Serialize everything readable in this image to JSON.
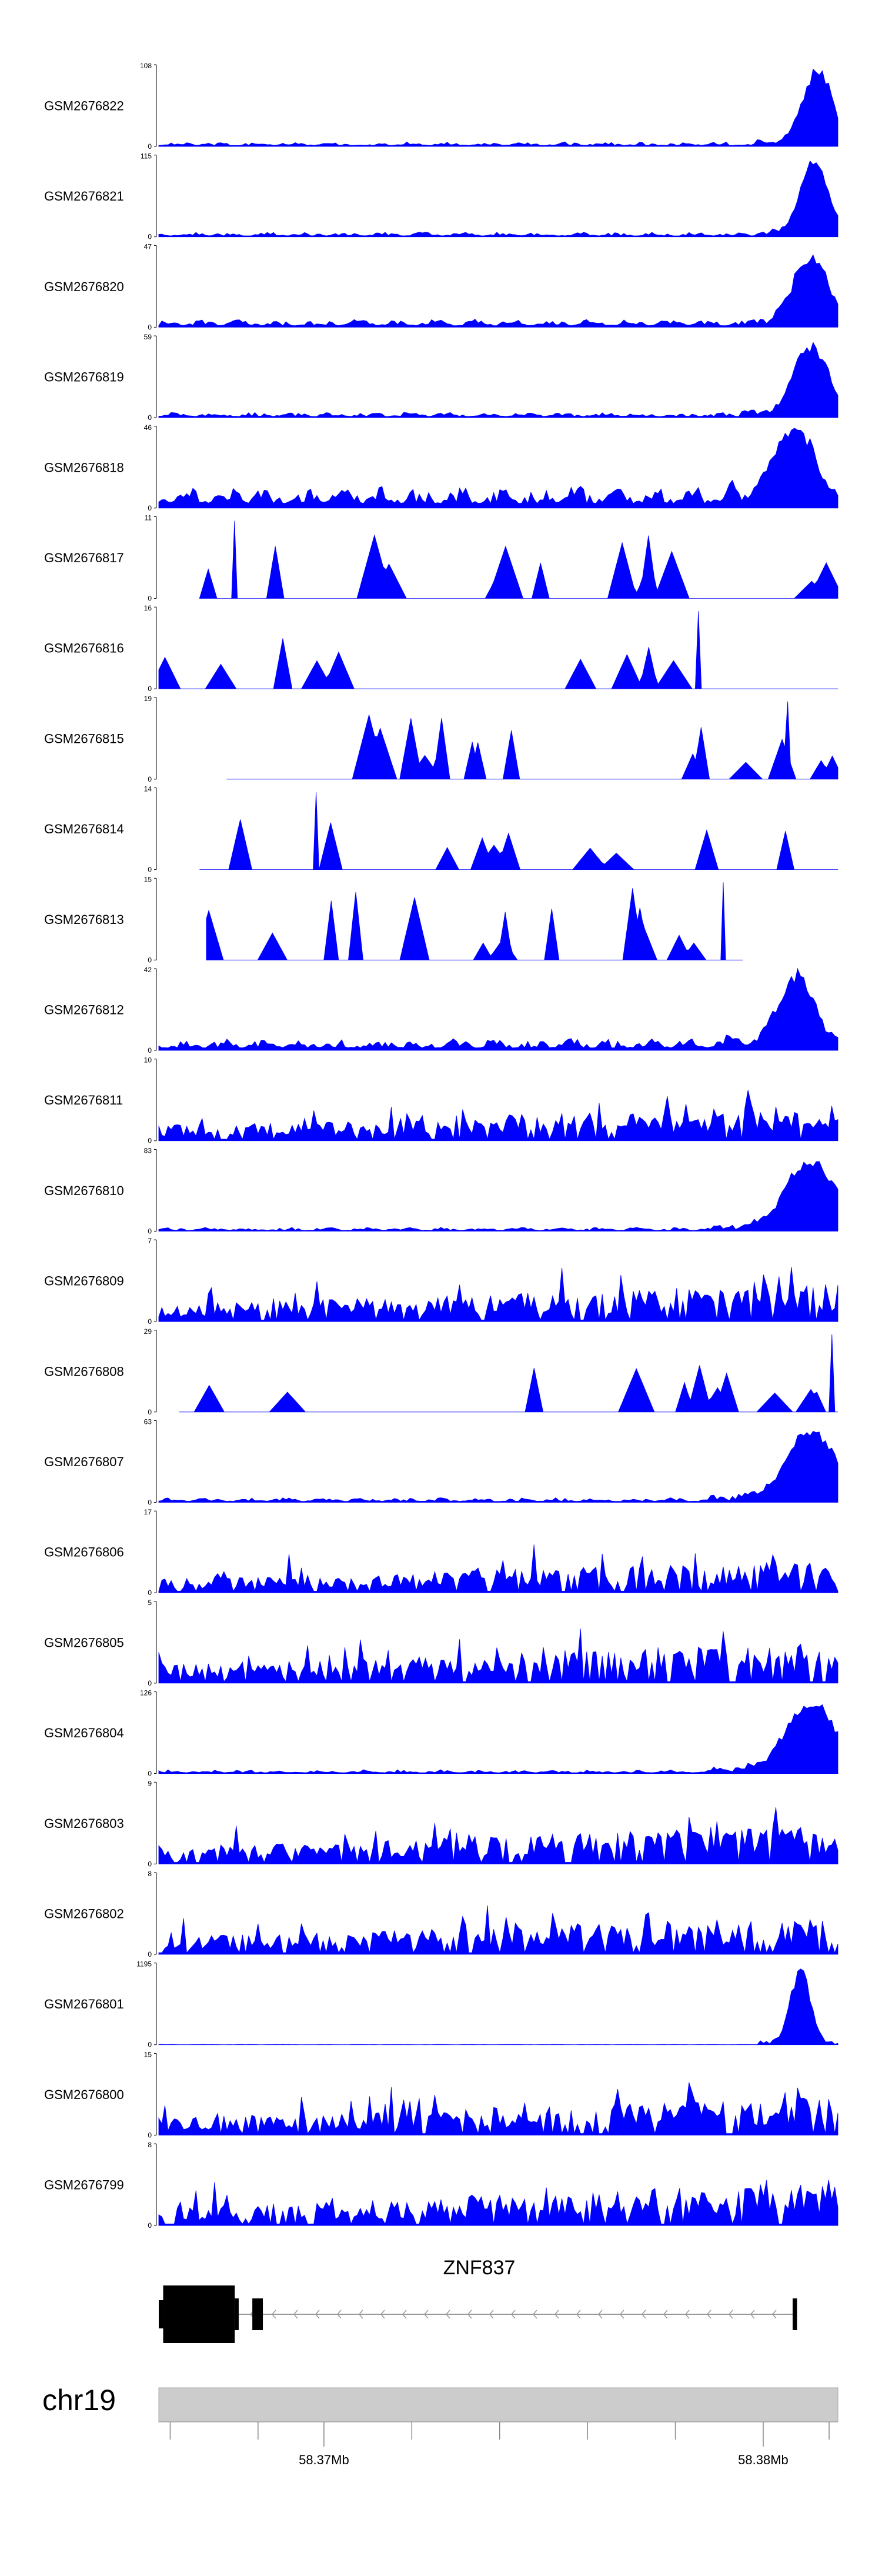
{
  "chart_data": {
    "type": "area",
    "color": "#0000ff",
    "genome": {
      "chromosome": "chr19",
      "x_range": [
        58.36624,
        58.3817
      ],
      "axis_ticks": [
        {
          "pos": 58.3665,
          "label": ""
        },
        {
          "pos": 58.3685,
          "label": ""
        },
        {
          "pos": 58.37,
          "label": "58.37Mb"
        },
        {
          "pos": 58.372,
          "label": ""
        },
        {
          "pos": 58.374,
          "label": ""
        },
        {
          "pos": 58.376,
          "label": ""
        },
        {
          "pos": 58.378,
          "label": ""
        },
        {
          "pos": 58.38,
          "label": "58.38Mb"
        },
        {
          "pos": 58.3815,
          "label": ""
        }
      ]
    },
    "gene": {
      "name": "ZNF837",
      "strand": "-",
      "exons": [
        {
          "start": 58.36624,
          "end": 58.36634
        },
        {
          "start": 58.36634,
          "end": 58.36797
        },
        {
          "start": 58.36797,
          "end": 58.36806
        },
        {
          "start": 58.36837,
          "end": 58.36861
        },
        {
          "start": 58.38067,
          "end": 58.38077
        }
      ],
      "intron": [
        58.36806,
        58.38077
      ]
    },
    "tracks": [
      {
        "name": "GSM2676822",
        "ymax": "108",
        "ymin": "0",
        "profile": "peak_end",
        "peak_pos": 0.97,
        "peak_width": 0.03,
        "peak_height": 0.92,
        "base": 0.06,
        "seed": 22,
        "start": 0.0,
        "end": 1.0
      },
      {
        "name": "GSM2676821",
        "ymax": "115",
        "ymin": "0",
        "profile": "peak_end",
        "peak_pos": 0.965,
        "peak_width": 0.028,
        "peak_height": 0.93,
        "base": 0.06,
        "seed": 21,
        "start": 0.0,
        "end": 1.0
      },
      {
        "name": "GSM2676820",
        "ymax": "47",
        "ymin": "0",
        "profile": "peak_end",
        "peak_pos": 0.96,
        "peak_width": 0.035,
        "peak_height": 0.85,
        "base": 0.1,
        "seed": 20,
        "start": 0.0,
        "end": 1.0
      },
      {
        "name": "GSM2676819",
        "ymax": "59",
        "ymin": "0",
        "profile": "peak_end",
        "peak_pos": 0.96,
        "peak_width": 0.035,
        "peak_height": 0.88,
        "base": 0.07,
        "seed": 19,
        "start": 0.0,
        "end": 1.0
      },
      {
        "name": "GSM2676818",
        "ymax": "46",
        "ymin": "0",
        "profile": "peak_end",
        "peak_pos": 0.935,
        "peak_width": 0.04,
        "peak_height": 0.88,
        "base": 0.28,
        "seed": 18,
        "start": 0.0,
        "end": 1.0
      },
      {
        "name": "GSM2676817",
        "ymax": "11",
        "ymin": "0",
        "profile": "sparse",
        "base": 0.7,
        "seed": 17,
        "start": 0.06,
        "end": 1.0
      },
      {
        "name": "GSM2676816",
        "ymax": "16",
        "ymin": "0",
        "profile": "sparse",
        "base": 0.55,
        "seed": 16,
        "start": 0.0,
        "end": 1.0
      },
      {
        "name": "GSM2676815",
        "ymax": "19",
        "ymin": "0",
        "profile": "sparse",
        "base": 0.75,
        "seed": 15,
        "start": 0.1,
        "end": 1.0
      },
      {
        "name": "GSM2676814",
        "ymax": "14",
        "ymin": "0",
        "profile": "sparse",
        "base": 0.6,
        "seed": 14,
        "start": 0.06,
        "end": 1.0
      },
      {
        "name": "GSM2676813",
        "ymax": "15",
        "ymin": "0",
        "profile": "sparse",
        "base": 0.7,
        "seed": 13,
        "start": 0.07,
        "end": 0.86
      },
      {
        "name": "GSM2676812",
        "ymax": "42",
        "ymin": "0",
        "profile": "peak_end",
        "peak_pos": 0.94,
        "peak_width": 0.035,
        "peak_height": 0.9,
        "base": 0.15,
        "seed": 12,
        "start": 0.0,
        "end": 1.0
      },
      {
        "name": "GSM2676811",
        "ymax": "10",
        "ymin": "0",
        "profile": "dense",
        "base": 0.55,
        "seed": 11,
        "start": 0.0,
        "end": 1.0
      },
      {
        "name": "GSM2676810",
        "ymax": "83",
        "ymin": "0",
        "profile": "peak_end",
        "peak_pos": 0.96,
        "peak_width": 0.05,
        "peak_height": 0.88,
        "base": 0.05,
        "seed": 10,
        "start": 0.0,
        "end": 1.0
      },
      {
        "name": "GSM2676809",
        "ymax": "7",
        "ymin": "0",
        "profile": "dense",
        "base": 0.6,
        "seed": 9,
        "start": 0.0,
        "end": 1.0
      },
      {
        "name": "GSM2676808",
        "ymax": "29",
        "ymin": "0",
        "profile": "sparse",
        "base": 0.45,
        "seed": 8,
        "start": 0.03,
        "end": 1.0
      },
      {
        "name": "GSM2676807",
        "ymax": "63",
        "ymin": "0",
        "profile": "peak_end",
        "peak_pos": 0.96,
        "peak_width": 0.05,
        "peak_height": 0.88,
        "base": 0.06,
        "seed": 7,
        "start": 0.0,
        "end": 1.0
      },
      {
        "name": "GSM2676806",
        "ymax": "17",
        "ymin": "0",
        "profile": "dense",
        "base": 0.5,
        "seed": 6,
        "start": 0.0,
        "end": 1.0
      },
      {
        "name": "GSM2676805",
        "ymax": "5",
        "ymin": "0",
        "profile": "dense",
        "base": 0.65,
        "seed": 5,
        "start": 0.0,
        "end": 1.0
      },
      {
        "name": "GSM2676804",
        "ymax": "126",
        "ymin": "0",
        "profile": "peak_end",
        "peak_pos": 0.96,
        "peak_width": 0.05,
        "peak_height": 0.87,
        "base": 0.05,
        "seed": 4,
        "start": 0.0,
        "end": 1.0
      },
      {
        "name": "GSM2676803",
        "ymax": "9",
        "ymin": "0",
        "profile": "dense",
        "base": 0.6,
        "seed": 3,
        "start": 0.0,
        "end": 1.0
      },
      {
        "name": "GSM2676802",
        "ymax": "8",
        "ymin": "0",
        "profile": "dense",
        "base": 0.6,
        "seed": 2,
        "start": 0.0,
        "end": 1.0
      },
      {
        "name": "GSM2676801",
        "ymax": "1195",
        "ymin": "0",
        "profile": "peak_end",
        "peak_pos": 0.945,
        "peak_width": 0.02,
        "peak_height": 0.94,
        "base": 0.005,
        "seed": 1,
        "start": 0.0,
        "end": 1.0
      },
      {
        "name": "GSM2676800",
        "ymax": "15",
        "ymin": "0",
        "profile": "dense",
        "base": 0.6,
        "seed": 31,
        "start": 0.0,
        "end": 1.0
      },
      {
        "name": "GSM2676799",
        "ymax": "8",
        "ymin": "0",
        "profile": "dense",
        "base": 0.65,
        "seed": 32,
        "start": 0.0,
        "end": 1.0
      }
    ]
  }
}
